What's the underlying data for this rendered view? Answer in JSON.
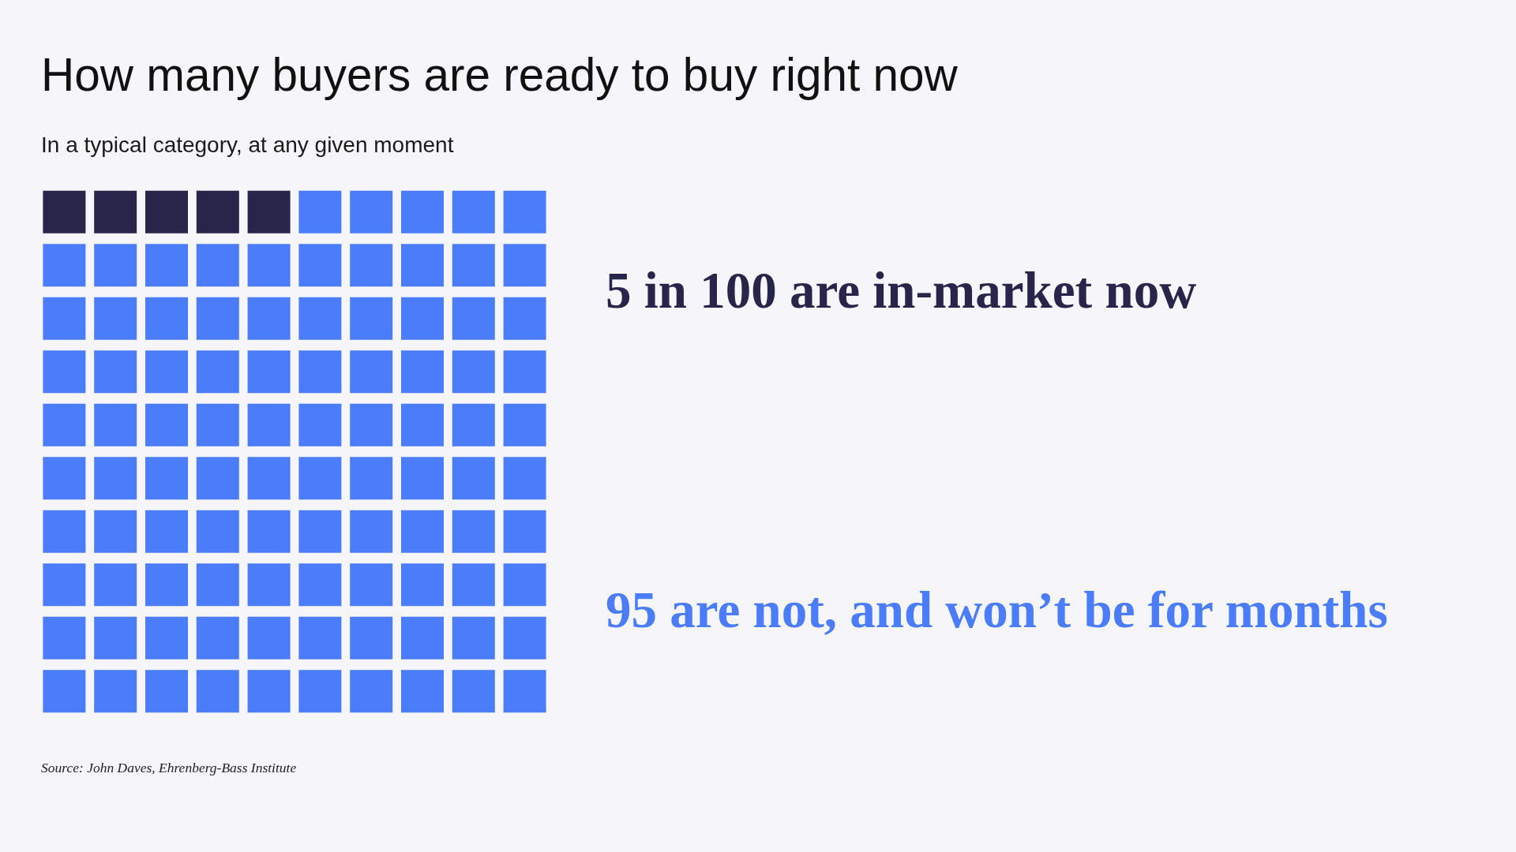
{
  "chart_data": {
    "type": "other",
    "title": "How many buyers are ready to buy right now",
    "subtitle": "In a typical category, at any given moment",
    "categories": [
      "in 100 are in-market now",
      "are not, and won’t be for months"
    ],
    "values": [
      5,
      95
    ],
    "colors": [
      "#29244a",
      "#4b7dfb"
    ],
    "data_labels": true,
    "annotations": [
      "Source: John Daves, Ehrenberg-Bass Institute"
    ]
  }
}
